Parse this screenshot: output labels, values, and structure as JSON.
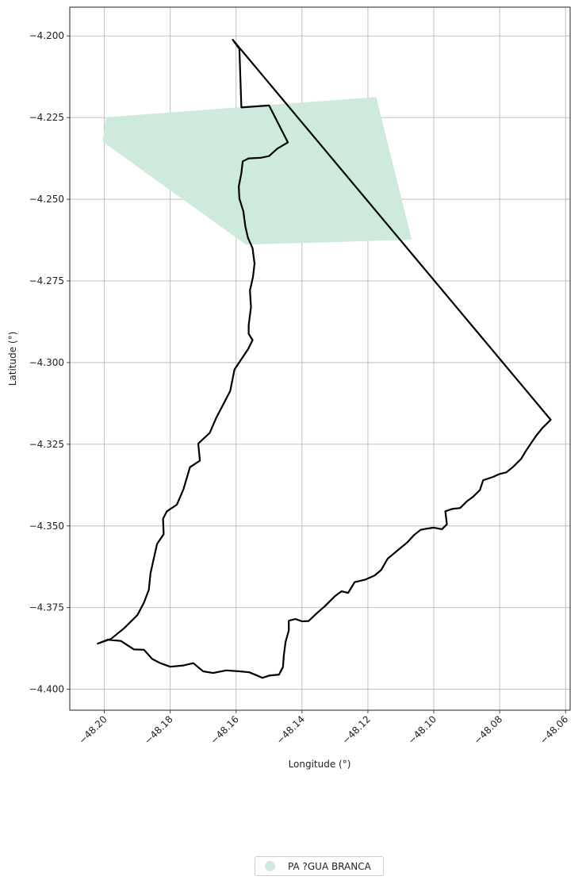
{
  "chart_data": {
    "type": "map",
    "xlabel": "Longitude (°)",
    "ylabel": "Latitude (°)",
    "xlim": [
      -48.2105,
      -48.0586
    ],
    "ylim": [
      -4.4064,
      -4.1912
    ],
    "xticks": [
      -48.2,
      -48.18,
      -48.16,
      -48.14,
      -48.12,
      -48.1,
      -48.08,
      -48.06
    ],
    "xtick_labels": [
      "−48.20",
      "−48.18",
      "−48.16",
      "−48.14",
      "−48.12",
      "−48.10",
      "−48.08",
      "−48.06"
    ],
    "yticks": [
      -4.2,
      -4.225,
      -4.25,
      -4.275,
      -4.3,
      -4.325,
      -4.35,
      -4.375,
      -4.4
    ],
    "ytick_labels": [
      "−4.200",
      "−4.225",
      "−4.250",
      "−4.275",
      "−4.300",
      "−4.325",
      "−4.350",
      "−4.375",
      "−4.400"
    ],
    "grid": true,
    "legend": {
      "placement": "bottom-center",
      "entries": [
        {
          "label": "PA ?GUA BRANCA",
          "color": "#cdeadc"
        }
      ]
    },
    "filled_area": {
      "name": "PA ?GUA BRANCA",
      "color": "#cdeadc",
      "points": [
        [
          -48.2005,
          -4.2324
        ],
        [
          -48.1995,
          -4.2249
        ],
        [
          -48.1175,
          -4.2187
        ],
        [
          -48.1067,
          -4.2624
        ],
        [
          -48.157,
          -4.2639
        ],
        [
          -48.2005,
          -4.2324
        ]
      ]
    },
    "boundary": {
      "color": "#000000",
      "points": [
        [
          -48.161,
          -4.2012
        ],
        [
          -48.159,
          -4.204
        ],
        [
          -48.1584,
          -4.2219
        ],
        [
          -48.15,
          -4.2213
        ],
        [
          -48.1443,
          -4.2326
        ],
        [
          -48.1475,
          -4.2345
        ],
        [
          -48.15,
          -4.2368
        ],
        [
          -48.1525,
          -4.2373
        ],
        [
          -48.1562,
          -4.2375
        ],
        [
          -48.158,
          -4.2384
        ],
        [
          -48.1584,
          -4.242
        ],
        [
          -48.1592,
          -4.2461
        ],
        [
          -48.159,
          -4.2498
        ],
        [
          -48.1578,
          -4.2537
        ],
        [
          -48.1572,
          -4.2583
        ],
        [
          -48.1564,
          -4.2618
        ],
        [
          -48.155,
          -4.265
        ],
        [
          -48.1544,
          -4.2697
        ],
        [
          -48.1549,
          -4.2738
        ],
        [
          -48.1558,
          -4.2779
        ],
        [
          -48.1555,
          -4.283
        ],
        [
          -48.1562,
          -4.2886
        ],
        [
          -48.1562,
          -4.2912
        ],
        [
          -48.155,
          -4.2931
        ],
        [
          -48.1563,
          -4.2958
        ],
        [
          -48.1605,
          -4.3021
        ],
        [
          -48.1618,
          -4.3087
        ],
        [
          -48.166,
          -4.3168
        ],
        [
          -48.168,
          -4.3215
        ],
        [
          -48.1715,
          -4.3248
        ],
        [
          -48.171,
          -4.33
        ],
        [
          -48.174,
          -4.332
        ],
        [
          -48.176,
          -4.3388
        ],
        [
          -48.178,
          -4.3435
        ],
        [
          -48.181,
          -4.3455
        ],
        [
          -48.1822,
          -4.3478
        ],
        [
          -48.182,
          -4.3525
        ],
        [
          -48.184,
          -4.3555
        ],
        [
          -48.185,
          -4.36
        ],
        [
          -48.186,
          -4.3645
        ],
        [
          -48.1865,
          -4.3695
        ],
        [
          -48.188,
          -4.3735
        ],
        [
          -48.19,
          -4.3773
        ],
        [
          -48.194,
          -4.3813
        ],
        [
          -48.198,
          -4.3846
        ],
        [
          -48.202,
          -4.386
        ],
        [
          -48.199,
          -4.3848
        ],
        [
          -48.195,
          -4.3852
        ],
        [
          -48.191,
          -4.3878
        ],
        [
          -48.188,
          -4.3879
        ],
        [
          -48.1855,
          -4.3907
        ],
        [
          -48.183,
          -4.392
        ],
        [
          -48.18,
          -4.3931
        ],
        [
          -48.176,
          -4.3927
        ],
        [
          -48.173,
          -4.392
        ],
        [
          -48.17,
          -4.3945
        ],
        [
          -48.167,
          -4.395
        ],
        [
          -48.163,
          -4.3942
        ],
        [
          -48.159,
          -4.3945
        ],
        [
          -48.156,
          -4.3948
        ],
        [
          -48.152,
          -4.3965
        ],
        [
          -48.15,
          -4.3958
        ],
        [
          -48.147,
          -4.3955
        ],
        [
          -48.1458,
          -4.3932
        ],
        [
          -48.1455,
          -4.3895
        ],
        [
          -48.145,
          -4.3855
        ],
        [
          -48.144,
          -4.382
        ],
        [
          -48.144,
          -4.379
        ],
        [
          -48.142,
          -4.3785
        ],
        [
          -48.14,
          -4.3792
        ],
        [
          -48.138,
          -4.3791
        ],
        [
          -48.1355,
          -4.3767
        ],
        [
          -48.133,
          -4.3745
        ],
        [
          -48.13,
          -4.3715
        ],
        [
          -48.128,
          -4.37
        ],
        [
          -48.126,
          -4.3705
        ],
        [
          -48.124,
          -4.3672
        ],
        [
          -48.121,
          -4.3665
        ],
        [
          -48.118,
          -4.3652
        ],
        [
          -48.116,
          -4.3635
        ],
        [
          -48.114,
          -4.36
        ],
        [
          -48.111,
          -4.3575
        ],
        [
          -48.108,
          -4.355
        ],
        [
          -48.106,
          -4.3528
        ],
        [
          -48.104,
          -4.3512
        ],
        [
          -48.102,
          -4.3508
        ],
        [
          -48.1,
          -4.3505
        ],
        [
          -48.0975,
          -4.351
        ],
        [
          -48.096,
          -4.3495
        ],
        [
          -48.0965,
          -4.3455
        ],
        [
          -48.0945,
          -4.3448
        ],
        [
          -48.092,
          -4.3445
        ],
        [
          -48.09,
          -4.3425
        ],
        [
          -48.088,
          -4.341
        ],
        [
          -48.086,
          -4.339
        ],
        [
          -48.085,
          -4.336
        ],
        [
          -48.082,
          -4.335
        ],
        [
          -48.08,
          -4.3341
        ],
        [
          -48.078,
          -4.3336
        ],
        [
          -48.076,
          -4.332
        ],
        [
          -48.0735,
          -4.3295
        ],
        [
          -48.072,
          -4.327
        ],
        [
          -48.07,
          -4.324
        ],
        [
          -48.069,
          -4.3225
        ],
        [
          -48.067,
          -4.32
        ],
        [
          -48.0645,
          -4.3175
        ],
        [
          -48.161,
          -4.2012
        ]
      ]
    }
  }
}
